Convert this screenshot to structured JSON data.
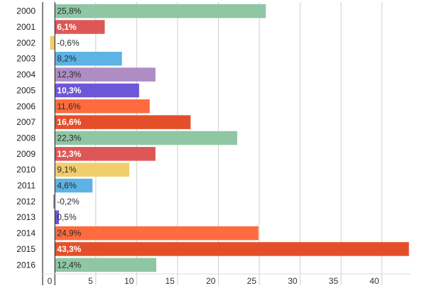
{
  "chart_data": {
    "type": "bar",
    "orientation": "horizontal",
    "title": "",
    "xlabel": "",
    "ylabel": "",
    "xlim": [
      -1.5,
      43.5
    ],
    "grid": true,
    "legend": "none",
    "x_ticks": [
      {
        "value": 0,
        "label": "0"
      },
      {
        "value": 5,
        "label": "5"
      },
      {
        "value": 10,
        "label": "10"
      },
      {
        "value": 15,
        "label": "15"
      },
      {
        "value": 20,
        "label": "20"
      },
      {
        "value": 25,
        "label": "25"
      },
      {
        "value": 30,
        "label": "30"
      },
      {
        "value": 35,
        "label": "35"
      },
      {
        "value": 40,
        "label": "40"
      }
    ],
    "categories": [
      "2000",
      "2001",
      "2002",
      "2003",
      "2004",
      "2005",
      "2006",
      "2007",
      "2008",
      "2009",
      "2010",
      "2011",
      "2012",
      "2013",
      "2014",
      "2015",
      "2016"
    ],
    "values": [
      25.8,
      6.1,
      -0.6,
      8.2,
      12.3,
      10.3,
      11.6,
      16.6,
      22.3,
      12.3,
      9.1,
      4.6,
      -0.2,
      0.5,
      24.9,
      43.3,
      12.4
    ],
    "data_labels": [
      "25,8%",
      "6,1%",
      "-0,6%",
      "8,2%",
      "12,3%",
      "10,3%",
      "11,6%",
      "16,6%",
      "22,3%",
      "12,3%",
      "9,1%",
      "4,6%",
      "-0,2%",
      "0,5%",
      "24,9%",
      "43,3%",
      "12,4%"
    ],
    "colors": [
      "#8fc6a3",
      "#dd5757",
      "#f2cd6b",
      "#5cb3e4",
      "#ad8dc4",
      "#6d56d8",
      "#ff6b3e",
      "#e44f2a",
      "#8fc6a3",
      "#dd5757",
      "#f2cd6b",
      "#5cb3e4",
      "#ad8dc4",
      "#6d56d8",
      "#ff6b3e",
      "#e44f2a",
      "#8fc6a3"
    ],
    "label_colors": [
      "#2b2b2b",
      "#ffffff",
      "#2b2b2b",
      "#2b2b2b",
      "#2b2b2b",
      "#ffffff",
      "#2b2b2b",
      "#ffffff",
      "#2b2b2b",
      "#ffffff",
      "#2b2b2b",
      "#2b2b2b",
      "#2b2b2b",
      "#2b2b2b",
      "#2b2b2b",
      "#ffffff",
      "#2b2b2b"
    ],
    "label_bold": [
      false,
      true,
      false,
      false,
      false,
      true,
      false,
      true,
      false,
      true,
      false,
      false,
      false,
      false,
      false,
      true,
      false
    ]
  }
}
